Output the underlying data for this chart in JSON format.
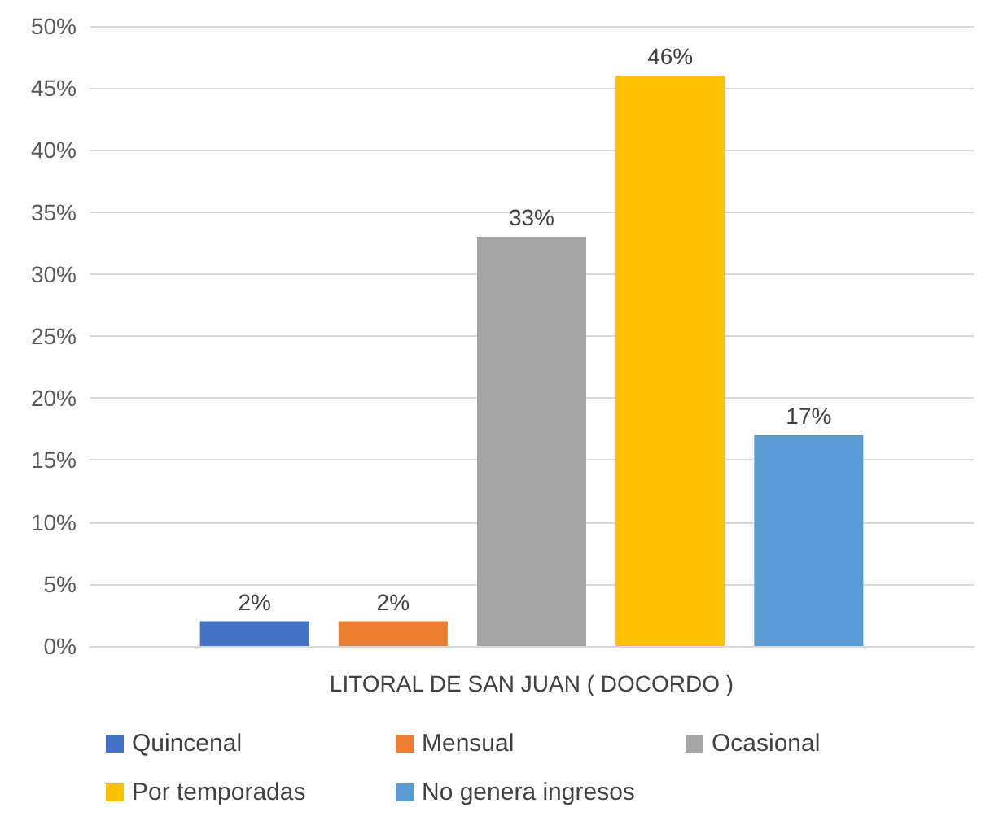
{
  "chart_data": {
    "type": "bar",
    "categories": [
      "LITORAL DE SAN JUAN ( DOCORDO )"
    ],
    "series": [
      {
        "name": "Quincenal",
        "color": "#4472c4",
        "values": [
          2
        ],
        "value_labels": [
          "2%"
        ]
      },
      {
        "name": "Mensual",
        "color": "#ed7d31",
        "values": [
          2
        ],
        "value_labels": [
          "2%"
        ]
      },
      {
        "name": "Ocasional",
        "color": "#a5a5a5",
        "values": [
          33
        ],
        "value_labels": [
          "33%"
        ]
      },
      {
        "name": "Por temporadas",
        "color": "#ffc000",
        "values": [
          46
        ],
        "value_labels": [
          "46%"
        ]
      },
      {
        "name": "No genera ingresos",
        "color": "#5b9bd5",
        "values": [
          17
        ],
        "value_labels": [
          "17%"
        ]
      }
    ],
    "ylim": [
      0,
      50
    ],
    "yticks": [
      {
        "value": 0,
        "label": "0%"
      },
      {
        "value": 5,
        "label": "5%"
      },
      {
        "value": 10,
        "label": "10%"
      },
      {
        "value": 15,
        "label": "15%"
      },
      {
        "value": 20,
        "label": "20%"
      },
      {
        "value": 25,
        "label": "25%"
      },
      {
        "value": 30,
        "label": "30%"
      },
      {
        "value": 35,
        "label": "35%"
      },
      {
        "value": 40,
        "label": "40%"
      },
      {
        "value": 45,
        "label": "45%"
      },
      {
        "value": 50,
        "label": "50%"
      }
    ],
    "grid": "y",
    "legend": "bottom"
  }
}
